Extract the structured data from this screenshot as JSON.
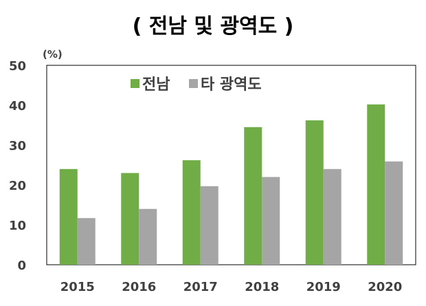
{
  "chart_data": {
    "type": "bar",
    "title": "( 전남 및 광역도 )",
    "unit_label": "(%)",
    "categories": [
      "2015",
      "2016",
      "2017",
      "2018",
      "2019",
      "2020"
    ],
    "series": [
      {
        "name": "전남",
        "values": [
          24,
          23,
          26.2,
          34.5,
          36.2,
          40.2
        ],
        "color": "#70ad47"
      },
      {
        "name": "타 광역도",
        "values": [
          11.7,
          14,
          19.7,
          22,
          24,
          25.9
        ],
        "color": "#a5a5a5"
      }
    ],
    "ylim": [
      0,
      50
    ],
    "yticks": [
      "0",
      "10",
      "20",
      "30",
      "40",
      "50"
    ],
    "legend_position": "top-left",
    "grid": false
  }
}
